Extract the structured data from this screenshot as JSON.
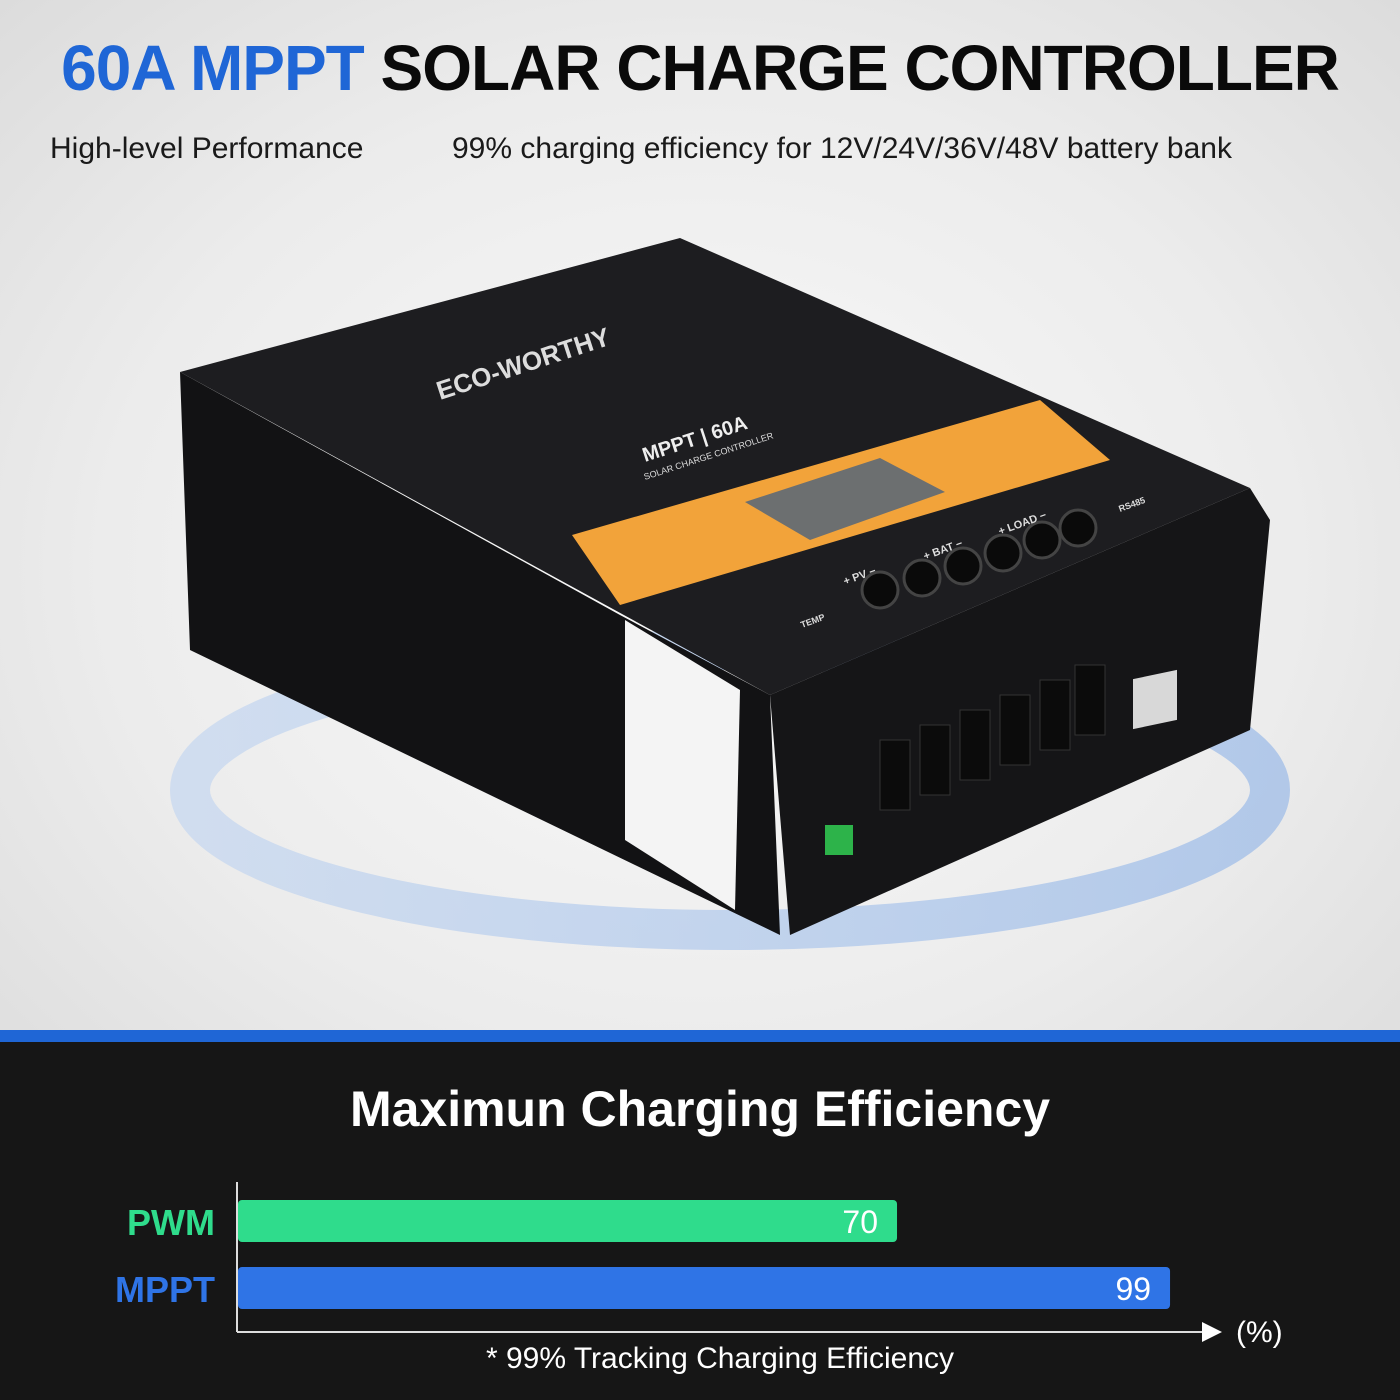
{
  "header": {
    "title_accent": "60A MPPT",
    "title_main": "SOLAR CHARGE CONTROLLER",
    "subtitle_left": "High-level Performance",
    "subtitle_right": "99% charging efficiency for 12V/24V/36V/48V battery bank"
  },
  "product": {
    "brand": "ECO-WORTHY",
    "model": "MPPT | 60A",
    "model_sub": "SOLAR CHARGE CONTROLLER",
    "terminals": [
      "+ PV −",
      "+ BAT −",
      "+ LOAD −"
    ],
    "ports": [
      "TEMP",
      "RS485"
    ],
    "panel_color": "#f2a33a",
    "body_color": "#1b1b1d"
  },
  "chart_data": {
    "type": "bar",
    "orientation": "horizontal",
    "title": "Maximun Charging Efficiency",
    "categories": [
      "PWM",
      "MPPT"
    ],
    "values": [
      70,
      99
    ],
    "colors": [
      "#2fdc8c",
      "#2f74e6"
    ],
    "xlabel": "(%)",
    "xlim": [
      0,
      100
    ],
    "grid": false,
    "note": "* 99% Tracking Charging Efficiency"
  },
  "colors": {
    "accent": "#1f66d6",
    "bottom_bg": "#161616"
  }
}
